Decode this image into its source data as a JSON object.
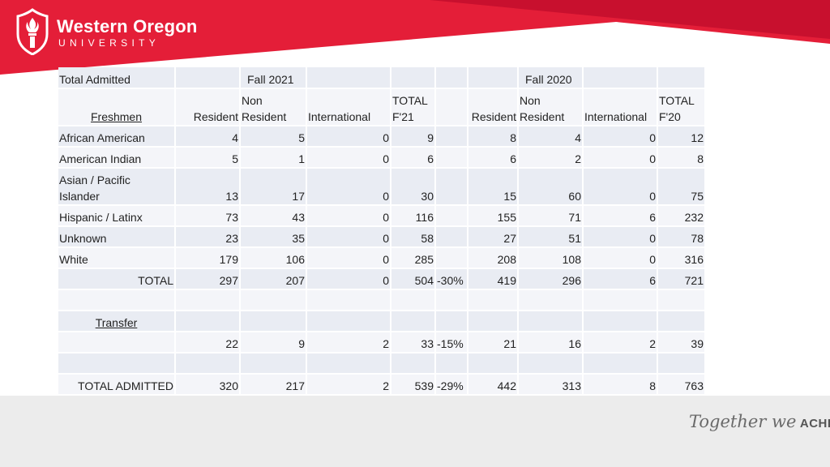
{
  "header": {
    "logo_name": "Western Oregon",
    "logo_sub": "UNIVERSITY",
    "brand_color": "#e41e38"
  },
  "footer": {
    "tagline_script": "Together we",
    "tagline_bold": "ACHIEVE"
  },
  "table": {
    "title": "Total Admitted",
    "fall2021": "Fall 2021",
    "fall2020": "Fall 2020",
    "freshmen_label": "Freshmen",
    "col_resident": "Resident",
    "col_non_top": "Non",
    "col_non_bottom": "Resident",
    "col_international": "International",
    "col_total21_top": "TOTAL",
    "col_total21_bottom": "F'21",
    "col_total20_top": "TOTAL",
    "col_total20_bottom": "F'20",
    "rows": [
      {
        "label": "African American",
        "r21": "4",
        "n21": "5",
        "i21": "0",
        "t21": "9",
        "pct": "",
        "r20": "8",
        "n20": "4",
        "i20": "0",
        "t20": "12"
      },
      {
        "label": "American Indian",
        "r21": "5",
        "n21": "1",
        "i21": "0",
        "t21": "6",
        "pct": "",
        "r20": "6",
        "n20": "2",
        "i20": "0",
        "t20": "8"
      },
      {
        "label": "Asian / Pacific Islander",
        "r21": "13",
        "n21": "17",
        "i21": "0",
        "t21": "30",
        "pct": "",
        "r20": "15",
        "n20": "60",
        "i20": "0",
        "t20": "75"
      },
      {
        "label": "Hispanic / Latinx",
        "r21": "73",
        "n21": "43",
        "i21": "0",
        "t21": "116",
        "pct": "",
        "r20": "155",
        "n20": "71",
        "i20": "6",
        "t20": "232"
      },
      {
        "label": "Unknown",
        "r21": "23",
        "n21": "35",
        "i21": "0",
        "t21": "58",
        "pct": "",
        "r20": "27",
        "n20": "51",
        "i20": "0",
        "t20": "78"
      },
      {
        "label": "White",
        "r21": "179",
        "n21": "106",
        "i21": "0",
        "t21": "285",
        "pct": "",
        "r20": "208",
        "n20": "108",
        "i20": "0",
        "t20": "316"
      }
    ],
    "total_row": {
      "label": "TOTAL",
      "r21": "297",
      "n21": "207",
      "i21": "0",
      "t21": "504",
      "pct": "-30%",
      "r20": "419",
      "n20": "296",
      "i20": "6",
      "t20": "721"
    },
    "transfer_label": "Transfer",
    "transfer_row": {
      "r21": "22",
      "n21": "9",
      "i21": "2",
      "t21": "33",
      "pct": "-15%",
      "r20": "21",
      "n20": "16",
      "i20": "2",
      "t20": "39"
    },
    "grand_row": {
      "label": "TOTAL ADMITTED",
      "r21": "320",
      "n21": "217",
      "i21": "2",
      "t21": "539",
      "pct": "-29%",
      "r20": "442",
      "n20": "313",
      "i20": "8",
      "t20": "763"
    }
  }
}
